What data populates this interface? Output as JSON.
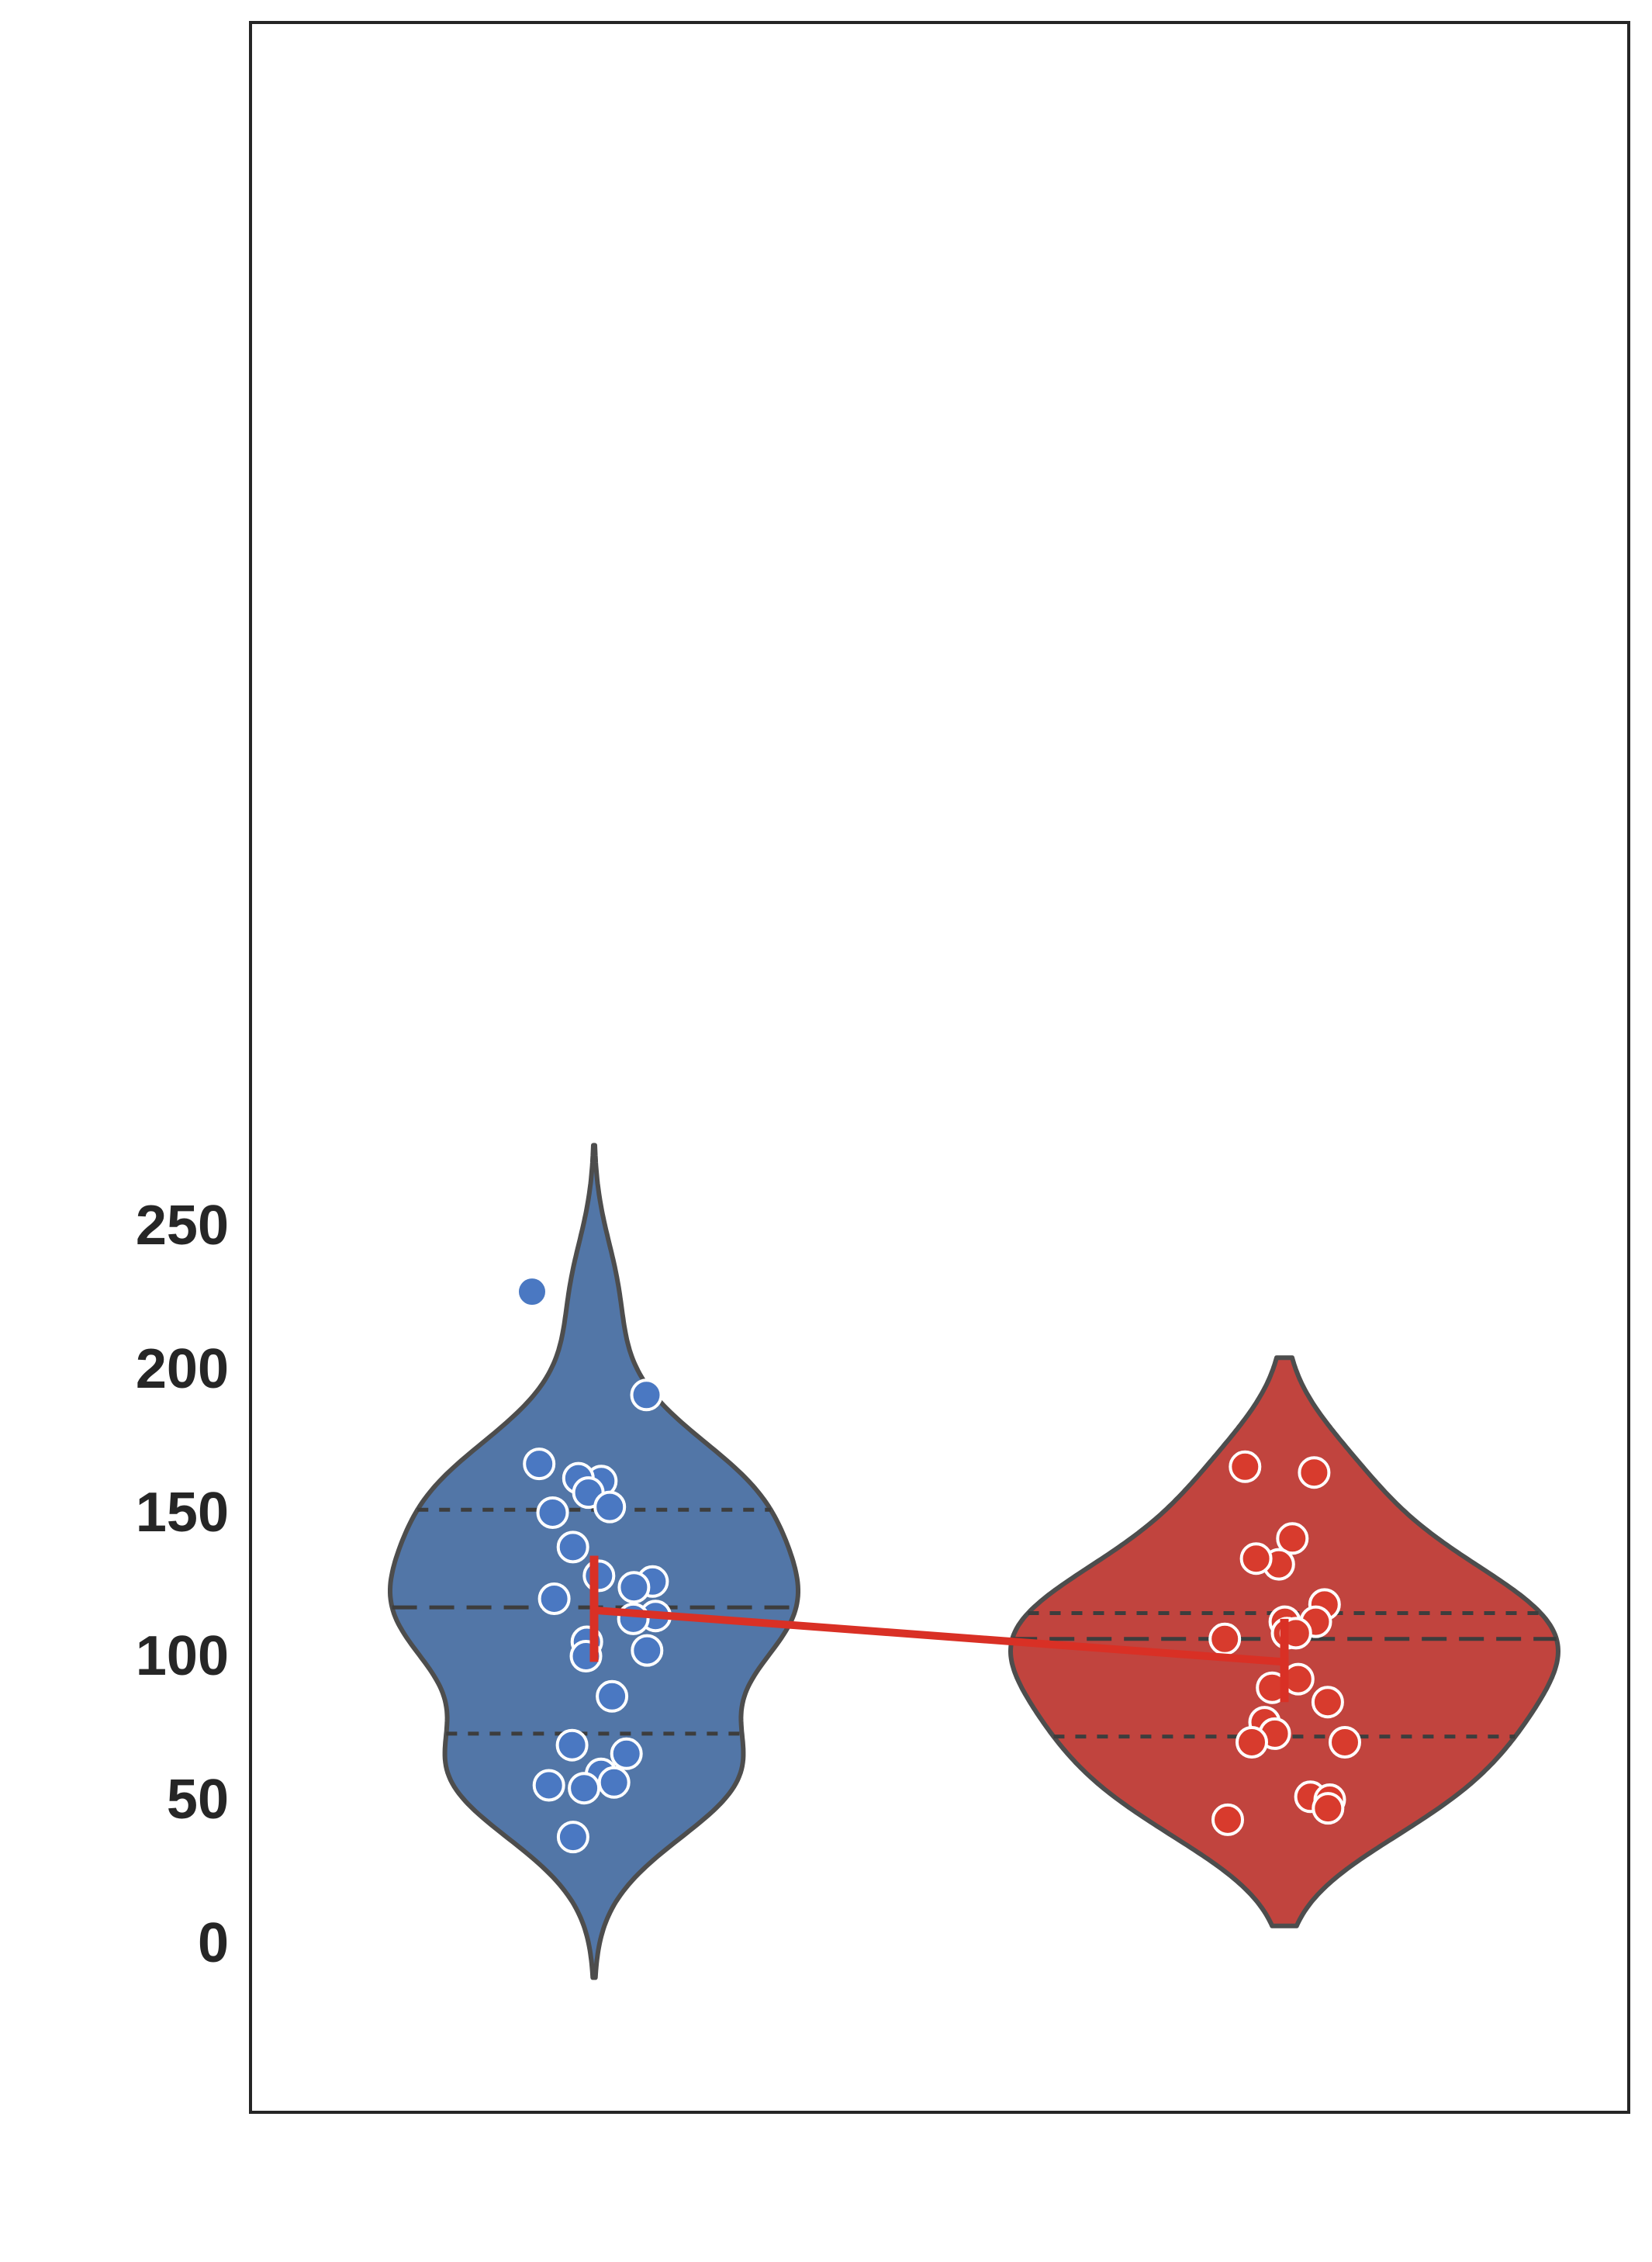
{
  "chart_data": {
    "type": "violin",
    "title": "",
    "xlabel": "",
    "ylabel": "",
    "ylim": [
      -26,
      292
    ],
    "yticks": [
      0,
      50,
      100,
      150,
      200,
      250
    ],
    "grid": false,
    "legend": "none",
    "colors": {
      "frame": "#262626",
      "violin_outline": "#4d4d4d",
      "quartile_line": "#3d3d3d",
      "point_edge": "#ffffff",
      "mean_line": "#d93025"
    },
    "groups": [
      {
        "fill": "#5276a7",
        "point_color": "#4a78c2",
        "y_min": -12,
        "y_max": 278,
        "quartiles": [
          73,
          117,
          151
        ],
        "mean": 116,
        "mean_ci": [
          98,
          135
        ],
        "points": [
          227,
          191,
          167,
          161,
          162,
          157,
          152,
          150,
          138,
          128,
          126,
          124,
          120,
          114,
          113,
          105,
          102,
          100,
          86,
          69,
          66,
          59,
          56,
          54,
          55,
          37
        ]
      },
      {
        "fill": "#c1443e",
        "point_color": "#d83b2d",
        "y_min": 6,
        "y_max": 204,
        "quartiles": [
          72,
          106,
          115
        ],
        "mean": 98,
        "mean_ci": [
          84,
          113
        ],
        "points": [
          166,
          164,
          141,
          132,
          134,
          118,
          112,
          112,
          108,
          108,
          106,
          108,
          92,
          89,
          84,
          77,
          73,
          70,
          70,
          51,
          50,
          47,
          43
        ]
      }
    ]
  }
}
